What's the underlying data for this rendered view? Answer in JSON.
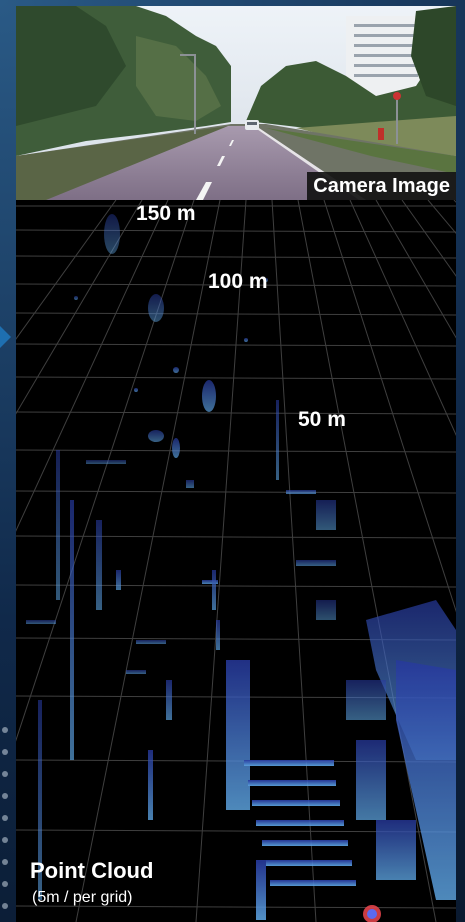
{
  "camera": {
    "label": "Camera Image"
  },
  "point_cloud": {
    "title": "Point Cloud",
    "subtitle": "(5m / per grid)",
    "distance_labels": [
      "150 m",
      "100 m",
      "50 m"
    ]
  },
  "colors": {
    "background": "#0b1d33",
    "accent": "#1e6fb0",
    "grid": "#3a3a3a",
    "points_near": "#5aa6f0",
    "points_far": "#3457c8"
  }
}
